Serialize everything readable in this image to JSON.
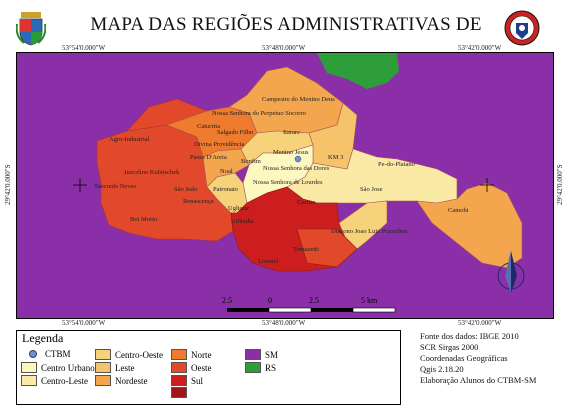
{
  "title": "MAPA DAS REGIÕES ADMINISTRATIVAS DE",
  "coords": {
    "top": [
      "53°54'0.000\"W",
      "53°48'0.000\"W",
      "53°42'0.000\"W"
    ],
    "bottom": [
      "53°54'0.000\"W",
      "53°48'0.000\"W",
      "53°42'0.000\"W"
    ],
    "left": "29°42'0.000\"S",
    "right": "29°42'0.000\"S"
  },
  "regions": [
    "Agro-Industrial",
    "Tancredo Neves",
    "Boi Morto",
    "Juscelino Kubitschek",
    "São João",
    "Renascença",
    "Caturrita",
    "Salgado Filho",
    "Divina Providência",
    "Passo D'Areia",
    "Noal",
    "Patronato",
    "Uglione",
    "Urlândia",
    "Lorenzi",
    "Tomazetti",
    "Bonfim",
    "Menino Jesus",
    "Nossa Senhora das Dores",
    "Nossa Senhora de Lourdes",
    "Cerrito",
    "KM 3",
    "Itarare",
    "Nossa Senhora do Perpetuo Socorro",
    "Campestre do Menino Deus",
    "Pe-do-Platano",
    "São Jose",
    "Camobi",
    "Diacono Joao Luiz Pozzobon"
  ],
  "scale": {
    "labels": [
      "2.5",
      "0",
      "2.5",
      "5 km"
    ]
  },
  "legend": {
    "title": "Legenda",
    "items": [
      {
        "label": "CTBM",
        "color": "#6f8fd8",
        "kind": "point"
      },
      {
        "label": "Centro Urbano",
        "color": "#fdf7c0"
      },
      {
        "label": "Centro-Leste",
        "color": "#fbe9a6"
      },
      {
        "label": "Centro-Oeste",
        "color": "#f6d27a"
      },
      {
        "label": "Leste",
        "color": "#f5c46a"
      },
      {
        "label": "Nordeste",
        "color": "#f3a64e"
      },
      {
        "label": "Norte",
        "color": "#ee7b2e"
      },
      {
        "label": "Oeste",
        "color": "#e2492b"
      },
      {
        "label": "Sul",
        "color": "#cc1e1e"
      },
      {
        "label": "",
        "color": "#a3141a"
      },
      {
        "label": "SM",
        "color": "#8a2fa8"
      },
      {
        "label": "RS",
        "color": "#2e9e3a"
      }
    ]
  },
  "info": [
    "Fonte dos dados: IBGE 2010",
    "SCR Sirgas 2000",
    "Coordenadas Geográficas",
    "Qgis 2.18.20",
    "Elaboração Alunos do CTBM-SM"
  ],
  "north_icon": "north-arrow-icon",
  "logos": [
    "city-coat-of-arms",
    "ctbm-badge"
  ]
}
